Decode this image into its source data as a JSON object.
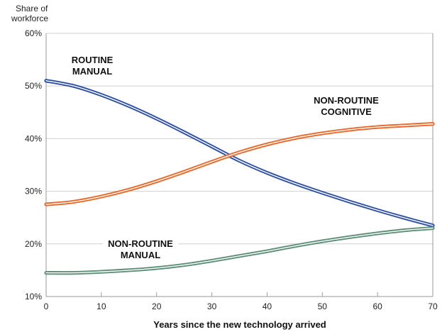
{
  "chart_data": {
    "type": "line",
    "ylabel_lines": [
      "Share of",
      "workforce"
    ],
    "xlabel": "Years since the new technology arrived",
    "xlim": [
      0,
      70
    ],
    "ylim": [
      10,
      60
    ],
    "x_ticks": [
      0,
      10,
      20,
      30,
      40,
      50,
      60,
      70
    ],
    "y_ticks": [
      10,
      20,
      30,
      40,
      50,
      60
    ],
    "y_tick_labels": [
      "10%",
      "20%",
      "30%",
      "40%",
      "50%",
      "60%"
    ],
    "grid": "horizontal",
    "series": [
      {
        "key": "routine-manual",
        "label_lines": [
          "ROUTINE",
          "MANUAL"
        ],
        "color": "#2f4fa2",
        "x": [
          0,
          5,
          10,
          15,
          20,
          25,
          30,
          35,
          40,
          45,
          50,
          55,
          60,
          65,
          70
        ],
        "y": [
          51.0,
          50.0,
          48.3,
          46.2,
          43.8,
          41.2,
          38.5,
          35.8,
          33.5,
          31.5,
          29.7,
          28.0,
          26.4,
          24.9,
          23.5
        ]
      },
      {
        "key": "non-routine-cognitive",
        "label_lines": [
          "NON-ROUTINE",
          "COGNITIVE"
        ],
        "color": "#e8692a",
        "x": [
          0,
          5,
          10,
          15,
          20,
          25,
          30,
          35,
          40,
          45,
          50,
          55,
          60,
          65,
          70
        ],
        "y": [
          27.5,
          28.0,
          29.0,
          30.3,
          31.9,
          33.7,
          35.6,
          37.4,
          38.9,
          40.1,
          41.0,
          41.7,
          42.2,
          42.5,
          42.8
        ]
      },
      {
        "key": "non-routine-manual",
        "label_lines": [
          "NON-ROUTINE",
          "MANUAL"
        ],
        "color": "#5e8f78",
        "x": [
          0,
          5,
          10,
          15,
          20,
          25,
          30,
          35,
          40,
          45,
          50,
          55,
          60,
          65,
          70
        ],
        "y": [
          14.5,
          14.5,
          14.7,
          15.0,
          15.4,
          16.0,
          16.8,
          17.7,
          18.6,
          19.6,
          20.5,
          21.3,
          22.0,
          22.6,
          23.0
        ]
      }
    ]
  }
}
